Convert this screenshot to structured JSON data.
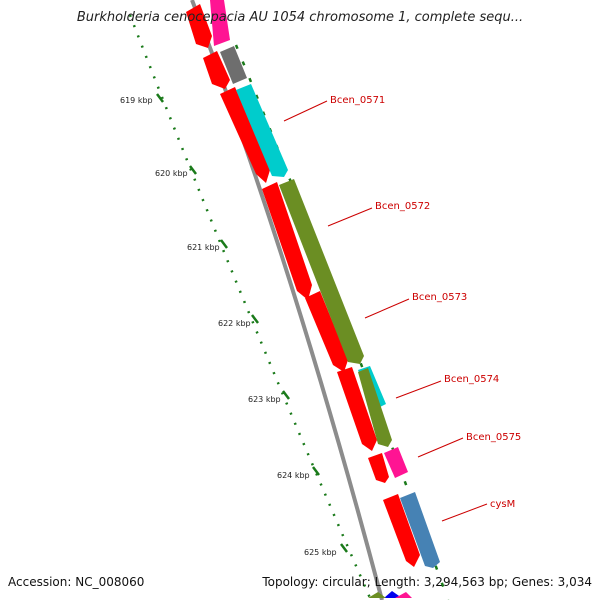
{
  "title": "Burkholderia cenocepacia AU 1054 chromosome 1, complete sequ...",
  "footer": {
    "accession_label": "Accession:",
    "accession": "NC_008060",
    "topology_label": "Topology:",
    "topology": "circular",
    "length_label": "Length:",
    "length": "3,294,563 bp",
    "genes_label": "Genes:",
    "genes": "3,034"
  },
  "ruler": {
    "unit": "kbp",
    "ticks": [
      {
        "kbp": 619,
        "label": "619 kbp"
      },
      {
        "kbp": 620,
        "label": "620 kbp"
      },
      {
        "kbp": 621,
        "label": "621 kbp"
      },
      {
        "kbp": 622,
        "label": "622 kbp"
      },
      {
        "kbp": 623,
        "label": "623 kbp"
      },
      {
        "kbp": 624,
        "label": "624 kbp"
      },
      {
        "kbp": 625,
        "label": "625 kbp"
      }
    ]
  },
  "genes": [
    {
      "name": "Bcen_0571",
      "start_kbp": 619.05,
      "end_kbp": 619.75,
      "track": "outer",
      "color": "#00cccc",
      "label": "Bcen_0571"
    },
    {
      "name": "Bcen_0572",
      "start_kbp": 619.8,
      "end_kbp": 622.6,
      "track": "outer",
      "color": "#6b8e23",
      "label": "Bcen_0572"
    },
    {
      "name": "Bcen_0573",
      "start_kbp": 622.3,
      "end_kbp": 622.65,
      "track": "outer",
      "color": "#00cccc",
      "label": "Bcen_0573"
    },
    {
      "name": "Bcen_0574",
      "start_kbp": 622.65,
      "end_kbp": 623.55,
      "track": "outer",
      "color": "#6b8e23",
      "label": "Bcen_0574"
    },
    {
      "name": "Bcen_0575",
      "start_kbp": 623.6,
      "end_kbp": 623.9,
      "track": "outer",
      "color": "#ff1493",
      "label": "Bcen_0575"
    },
    {
      "name": "cysM",
      "start_kbp": 624.2,
      "end_kbp": 625.1,
      "track": "outer",
      "color": "#4682b4",
      "label": "cysM"
    }
  ],
  "colors": {
    "cds": "#ff0000",
    "backbone": "#8c8c8c",
    "ruler": "#1a7a1a",
    "gene_label": "#cc0000"
  }
}
